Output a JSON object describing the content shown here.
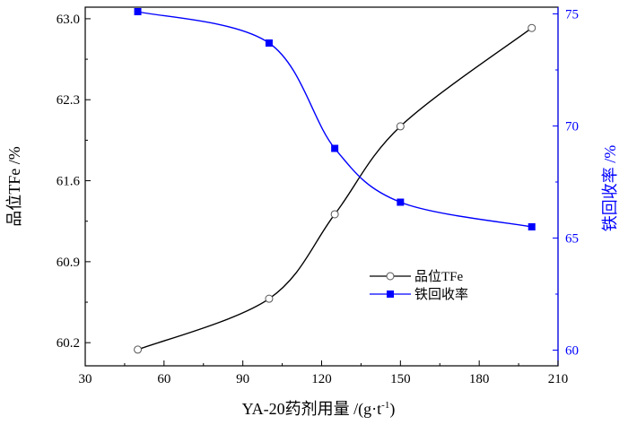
{
  "chart_data": {
    "type": "line",
    "xlabel": "YA-20药剂用量 /(g·t",
    "xlabel_superscript": "-1",
    "xlabel_suffix": ")",
    "xlim": [
      30,
      210
    ],
    "x_ticks": [
      "30",
      "60",
      "90",
      "120",
      "150",
      "180",
      "210"
    ],
    "y_left": {
      "label": "品位TFe /%",
      "lim": [
        60.0,
        63.1
      ],
      "ticks": [
        "60.2",
        "60.9",
        "61.6",
        "62.3",
        "63.0"
      ],
      "color": "#000000"
    },
    "y_right": {
      "label": "铁回收率 /%",
      "lim": [
        59.3,
        75.3
      ],
      "ticks": [
        "60",
        "65",
        "70",
        "75"
      ],
      "color": "#0000ff"
    },
    "series": [
      {
        "name": "品位TFe",
        "axis": "left",
        "color": "#000000",
        "marker": "open-circle",
        "x": [
          50,
          100,
          125,
          150,
          200
        ],
        "y": [
          60.14,
          60.58,
          61.31,
          62.07,
          62.92
        ]
      },
      {
        "name": "铁回收率",
        "axis": "right",
        "color": "#0000ff",
        "marker": "filled-square",
        "x": [
          50,
          100,
          125,
          150,
          200
        ],
        "y": [
          75.1,
          73.7,
          69.0,
          66.6,
          65.5
        ]
      }
    ],
    "legend_position": "lower-right-center",
    "grid": false
  }
}
